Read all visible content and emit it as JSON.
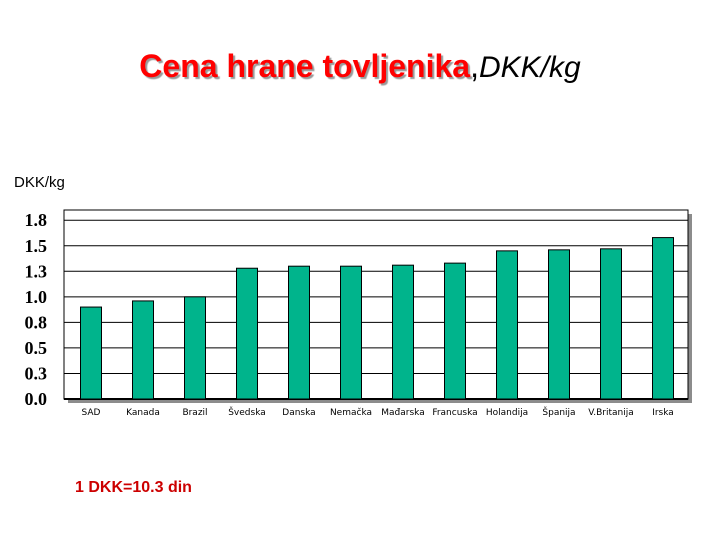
{
  "title": {
    "main": "Cena hrane tovljenika",
    "separator": ",",
    "unit": "DKK/kg"
  },
  "note": "1 DKK=10.3 din",
  "colors": {
    "bar": "#00b48c",
    "bar_outline": "#000000",
    "title": "#ff0000",
    "note": "#cc0000",
    "plot_bg": "#ffffff",
    "grid": "#000000"
  },
  "chart_data": {
    "type": "bar",
    "title": "Cena hrane tovljenika, DKK/kg",
    "ylabel": "DKK/kg",
    "xlabel": "",
    "ylim": [
      0.0,
      1.8
    ],
    "yticks": [
      {
        "value": 0.0,
        "label": "0.0"
      },
      {
        "value": 0.25,
        "label": "0.3"
      },
      {
        "value": 0.5,
        "label": "0.5"
      },
      {
        "value": 0.75,
        "label": "0.8"
      },
      {
        "value": 1.0,
        "label": "1.0"
      },
      {
        "value": 1.25,
        "label": "1.3"
      },
      {
        "value": 1.5,
        "label": "1.5"
      },
      {
        "value": 1.75,
        "label": "1.8"
      }
    ],
    "grid": true,
    "categories": [
      "SAD",
      "Kanada",
      "Brazil",
      "Švedska",
      "Danska",
      "Nemačka",
      "Mađarska",
      "Francuska",
      "Holandija",
      "Španija",
      "V.Britanija",
      "Irska"
    ],
    "values": [
      0.9,
      0.96,
      1.0,
      1.28,
      1.3,
      1.3,
      1.31,
      1.33,
      1.45,
      1.46,
      1.47,
      1.58
    ]
  }
}
